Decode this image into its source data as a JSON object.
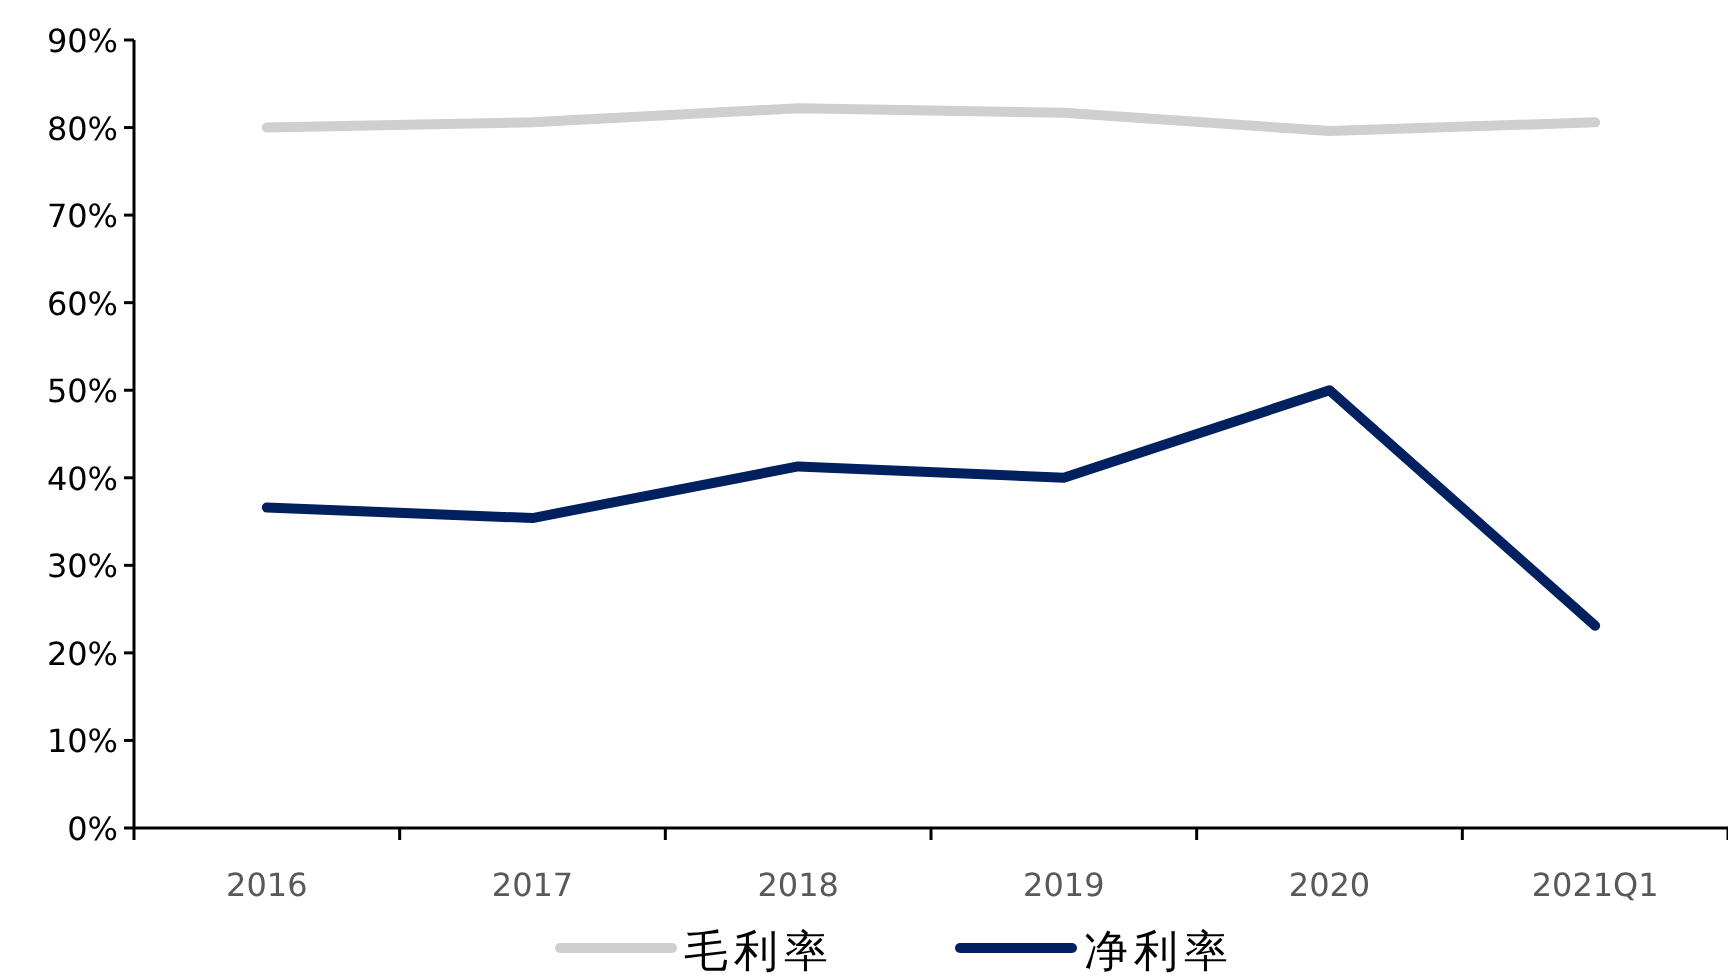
{
  "chart_data": {
    "type": "line",
    "categories": [
      "2016",
      "2017",
      "2018",
      "2019",
      "2020",
      "2021Q1"
    ],
    "series": [
      {
        "name": "毛利率",
        "color": "#d0cece",
        "values": [
          80,
          80.6,
          82.2,
          81.7,
          79.6,
          80.6
        ]
      },
      {
        "name": "净利率",
        "color": "#002060",
        "values": [
          36.6,
          35.4,
          41.3,
          40,
          50,
          23.1
        ]
      }
    ],
    "ylim": [
      0,
      90
    ],
    "yticks": [
      {
        "value": 0,
        "label": "0%"
      },
      {
        "value": 10,
        "label": "10%"
      },
      {
        "value": 20,
        "label": "20%"
      },
      {
        "value": 30,
        "label": "30%"
      },
      {
        "value": 40,
        "label": "40%"
      },
      {
        "value": 50,
        "label": "50%"
      },
      {
        "value": 60,
        "label": "60%"
      },
      {
        "value": 70,
        "label": "70%"
      },
      {
        "value": 80,
        "label": "80%"
      },
      {
        "value": 90,
        "label": "90%"
      }
    ],
    "legend": "bottom",
    "marker": "none",
    "line_style": "solid",
    "grid": false
  }
}
